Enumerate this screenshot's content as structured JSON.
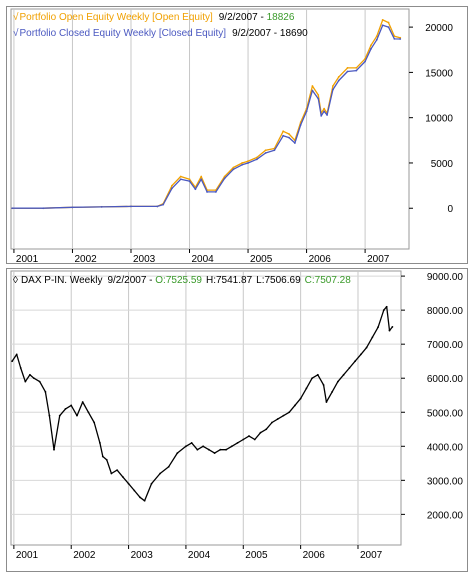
{
  "equity_pane": {
    "legend": [
      {
        "check": "√",
        "name": "Portfolio Open Equity Weekly [Open Equity]",
        "date": "9/2/2007",
        "sep": " - ",
        "value": "18826",
        "color": "#f0a000",
        "value_color": "#3a9a2a"
      },
      {
        "check": "√",
        "name": "Portfolio Closed Equity Weekly [Closed Equity]",
        "date": "9/2/2007",
        "sep": " - ",
        "value": "18690",
        "color": "#4a58c0",
        "value_color": "#000000"
      }
    ]
  },
  "dax_pane": {
    "legend": {
      "marker": "◊",
      "title": "DAX P-IN. Weekly",
      "date": "9/2/2007",
      "sep": " - ",
      "open_label": "O:7525.59",
      "high_label": "H:7541.87",
      "low_label": "L:7506.69",
      "close_label": "C:7507.28",
      "open_color": "#3a9a2a",
      "close_color": "#3a9a2a"
    }
  },
  "chart_data": [
    {
      "type": "line",
      "title": "",
      "xlabel": "",
      "ylabel": "",
      "x_ticks": [
        "2001",
        "2002",
        "2003",
        "2004",
        "2005",
        "2006",
        "2007"
      ],
      "y_ticks": [
        "0",
        "5000",
        "10000",
        "15000",
        "20000"
      ],
      "ylim": [
        -4500,
        22000
      ],
      "grid": true,
      "legend_position": "top-left",
      "series": [
        {
          "name": "Portfolio Open Equity Weekly [Open Equity]",
          "color": "#f0a000",
          "x": [
            2000.97,
            2001.5,
            2002.0,
            2002.5,
            2003.0,
            2003.45,
            2003.55,
            2003.7,
            2003.85,
            2004.0,
            2004.1,
            2004.2,
            2004.3,
            2004.45,
            2004.6,
            2004.75,
            2004.9,
            2005.0,
            2005.15,
            2005.3,
            2005.45,
            2005.6,
            2005.7,
            2005.8,
            2005.9,
            2006.0,
            2006.1,
            2006.2,
            2006.25,
            2006.3,
            2006.35,
            2006.45,
            2006.55,
            2006.7,
            2006.85,
            2007.0,
            2007.1,
            2007.2,
            2007.3,
            2007.4,
            2007.5,
            2007.6
          ],
          "values": [
            0,
            0,
            100,
            150,
            200,
            200,
            500,
            2500,
            3500,
            3200,
            2300,
            3500,
            2000,
            2000,
            3500,
            4500,
            5000,
            5200,
            5600,
            6400,
            6600,
            8500,
            8200,
            7500,
            9500,
            11000,
            13500,
            12500,
            10500,
            11000,
            10500,
            13500,
            14500,
            15500,
            15500,
            16500,
            18000,
            19000,
            20800,
            20500,
            19000,
            18826
          ]
        },
        {
          "name": "Portfolio Closed Equity Weekly [Closed Equity]",
          "color": "#4a58c0",
          "x": [
            2000.97,
            2001.5,
            2002.0,
            2002.5,
            2003.0,
            2003.45,
            2003.55,
            2003.7,
            2003.85,
            2004.0,
            2004.1,
            2004.2,
            2004.3,
            2004.45,
            2004.6,
            2004.75,
            2004.9,
            2005.0,
            2005.15,
            2005.3,
            2005.45,
            2005.6,
            2005.7,
            2005.8,
            2005.9,
            2006.0,
            2006.1,
            2006.2,
            2006.25,
            2006.3,
            2006.35,
            2006.45,
            2006.55,
            2006.7,
            2006.85,
            2007.0,
            2007.1,
            2007.2,
            2007.3,
            2007.4,
            2007.5,
            2007.6
          ],
          "values": [
            0,
            0,
            100,
            150,
            200,
            200,
            400,
            2200,
            3200,
            3000,
            2100,
            3200,
            1800,
            1800,
            3300,
            4300,
            4800,
            5000,
            5400,
            6100,
            6400,
            8000,
            7800,
            7200,
            9200,
            10700,
            13000,
            12100,
            10200,
            10700,
            10300,
            13100,
            14100,
            15100,
            15200,
            16200,
            17600,
            18600,
            20200,
            20000,
            18700,
            18690
          ]
        }
      ]
    },
    {
      "type": "line",
      "title": "",
      "xlabel": "",
      "ylabel": "",
      "x_ticks": [
        "2001",
        "2002",
        "2003",
        "2004",
        "2005",
        "2006",
        "2007"
      ],
      "y_ticks": [
        "2000.00",
        "3000.00",
        "4000.00",
        "5000.00",
        "6000.00",
        "7000.00",
        "8000.00",
        "9000.00"
      ],
      "ylim": [
        1100,
        9150
      ],
      "grid": true,
      "series": [
        {
          "name": "DAX P-IN. Weekly",
          "color": "#000000",
          "x": [
            2000.97,
            2001.05,
            2001.12,
            2001.2,
            2001.28,
            2001.35,
            2001.45,
            2001.55,
            2001.62,
            2001.7,
            2001.8,
            2001.9,
            2002.0,
            2002.1,
            2002.2,
            2002.3,
            2002.4,
            2002.5,
            2002.55,
            2002.62,
            2002.7,
            2002.8,
            2002.9,
            2003.0,
            2003.1,
            2003.2,
            2003.28,
            2003.4,
            2003.55,
            2003.7,
            2003.85,
            2004.0,
            2004.1,
            2004.2,
            2004.3,
            2004.4,
            2004.5,
            2004.6,
            2004.7,
            2004.8,
            2004.9,
            2005.0,
            2005.1,
            2005.2,
            2005.3,
            2005.4,
            2005.5,
            2005.6,
            2005.7,
            2005.8,
            2005.9,
            2006.0,
            2006.1,
            2006.2,
            2006.3,
            2006.4,
            2006.45,
            2006.55,
            2006.65,
            2006.75,
            2006.85,
            2006.95,
            2007.05,
            2007.15,
            2007.25,
            2007.35,
            2007.45,
            2007.5,
            2007.55,
            2007.6
          ],
          "values": [
            6500,
            6700,
            6300,
            5900,
            6100,
            6000,
            5900,
            5600,
            4900,
            3900,
            4900,
            5100,
            5200,
            4900,
            5300,
            5000,
            4700,
            4100,
            3700,
            3600,
            3200,
            3300,
            3100,
            2900,
            2700,
            2500,
            2400,
            2900,
            3200,
            3400,
            3800,
            4000,
            4100,
            3900,
            4000,
            3900,
            3800,
            3900,
            3900,
            4000,
            4100,
            4200,
            4300,
            4200,
            4400,
            4500,
            4700,
            4800,
            4900,
            5000,
            5200,
            5400,
            5700,
            6000,
            6100,
            5800,
            5300,
            5600,
            5900,
            6100,
            6300,
            6500,
            6700,
            6900,
            7200,
            7500,
            8000,
            8100,
            7400,
            7507.28
          ]
        }
      ]
    }
  ]
}
